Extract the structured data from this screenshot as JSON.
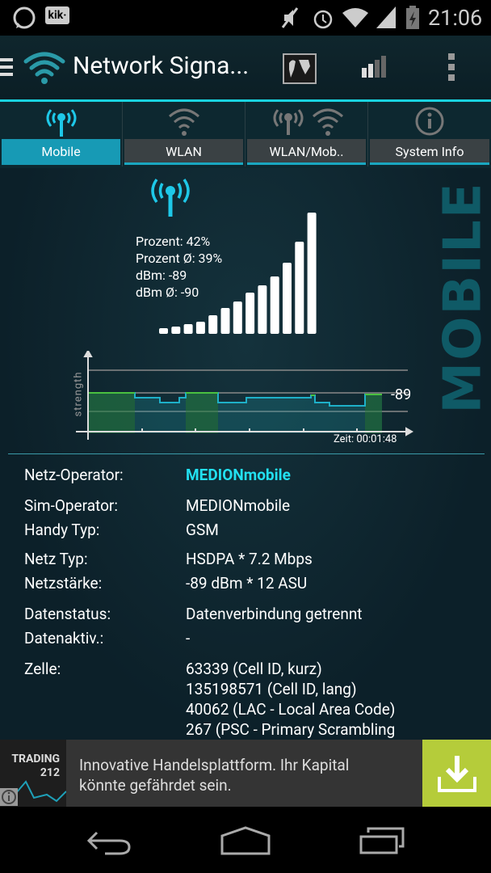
{
  "status_bar": {
    "time": "21:06",
    "icons": [
      "whatsapp-icon",
      "kik-icon",
      "mute-icon",
      "alarm-icon",
      "wifi-icon",
      "cell-signal-icon",
      "battery-charging-icon"
    ],
    "kik_label": "kik·"
  },
  "app_bar": {
    "title": "Network Signa...",
    "icons": [
      "menu-icon",
      "wifi-logo-icon",
      "world-map-icon",
      "signal-bars-icon",
      "overflow-menu-icon"
    ]
  },
  "tabs": [
    {
      "label": "Mobile",
      "active": true
    },
    {
      "label": "WLAN"
    },
    {
      "label": "WLAN/Mob.."
    },
    {
      "label": "System Info"
    }
  ],
  "signal": {
    "prozent": "Prozent: 42%",
    "prozent_avg": "Prozent Ø: 39%",
    "dbm": "dBm: -89",
    "dbm_avg": "dBm Ø: -90",
    "side_label": "MOBILE"
  },
  "graph": {
    "ylabel": "strength",
    "current": "-89",
    "time": "Zeit: 00:01:48"
  },
  "details": [
    {
      "label": "Netz-Operator:",
      "value": "MEDIONmobile",
      "highlight": true
    },
    {
      "label": "Sim-Operator:",
      "value": "MEDIONmobile"
    },
    {
      "label": "Handy Typ:",
      "value": "GSM"
    },
    {
      "label": "Netz Typ:",
      "value": "HSDPA * 7.2 Mbps"
    },
    {
      "label": "Netzstärke:",
      "value": "-89 dBm * 12 ASU"
    },
    {
      "label": "Datenstatus:",
      "value": "Datenverbindung getrennt"
    },
    {
      "label": "Datenaktiv.:",
      "value": "-"
    },
    {
      "label": "Zelle:",
      "value": "63339 (Cell ID, kurz)"
    },
    {
      "label": "",
      "value": "135198571 (Cell ID, lang)"
    },
    {
      "label": "",
      "value": "40062 (LAC - Local Area Code)"
    },
    {
      "label": "",
      "value": "267 (PSC - Primary Scrambling"
    }
  ],
  "ad": {
    "brand": "TRADING 212",
    "text1": "Innovative Handelsplattform. Ihr Kapital",
    "text2": "könnte gefährdet sein.",
    "accent": "#b5cc3a"
  },
  "colors": {
    "accent": "#19d3e0",
    "tab_active": "#179ab5",
    "operator": "#22e0f0"
  }
}
